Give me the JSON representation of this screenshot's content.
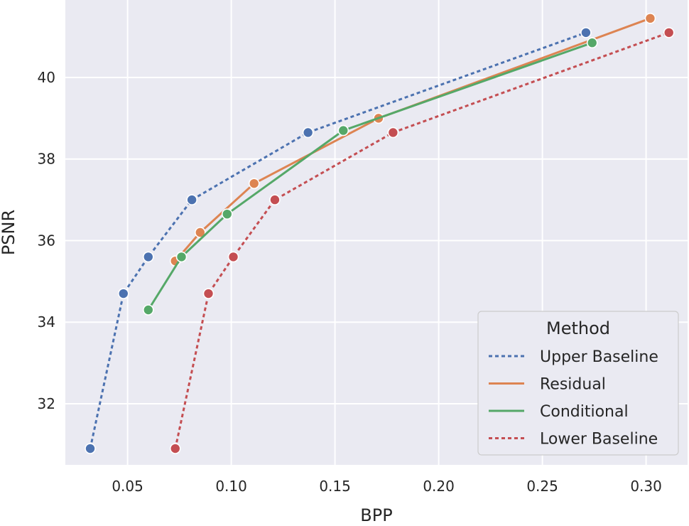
{
  "chart_data": {
    "type": "line",
    "title": "",
    "xlabel": "BPP",
    "ylabel": "PSNR",
    "xlim": [
      0.02,
      0.32
    ],
    "ylim": [
      30.5,
      41.9
    ],
    "xticks": [
      0.05,
      0.1,
      0.15,
      0.2,
      0.25,
      0.3
    ],
    "xtick_labels": [
      "0.05",
      "0.10",
      "0.15",
      "0.20",
      "0.25",
      "0.30"
    ],
    "yticks": [
      32,
      34,
      36,
      38,
      40
    ],
    "ytick_labels": [
      "32",
      "34",
      "36",
      "38",
      "40"
    ],
    "grid": true,
    "background": "#eaeaf2",
    "legend": {
      "title": "Method",
      "position": "lower-right"
    },
    "series": [
      {
        "name": "Upper Baseline",
        "color": "#4c72b0",
        "dashed": true,
        "x": [
          0.032,
          0.048,
          0.06,
          0.081,
          0.137,
          0.271
        ],
        "y": [
          30.9,
          34.7,
          35.6,
          37.0,
          38.65,
          41.1
        ]
      },
      {
        "name": "Residual",
        "color": "#dd8452",
        "dashed": false,
        "x": [
          0.073,
          0.085,
          0.111,
          0.171,
          0.302
        ],
        "y": [
          35.5,
          36.2,
          37.4,
          39.0,
          41.45
        ]
      },
      {
        "name": "Conditional",
        "color": "#55a868",
        "dashed": false,
        "x": [
          0.06,
          0.076,
          0.098,
          0.154,
          0.274
        ],
        "y": [
          34.3,
          35.6,
          36.65,
          38.7,
          40.85
        ]
      },
      {
        "name": "Lower Baseline",
        "color": "#c44e52",
        "dashed": true,
        "x": [
          0.073,
          0.089,
          0.101,
          0.121,
          0.178,
          0.311
        ],
        "y": [
          30.9,
          34.7,
          35.6,
          37.0,
          38.65,
          41.1
        ]
      }
    ]
  }
}
